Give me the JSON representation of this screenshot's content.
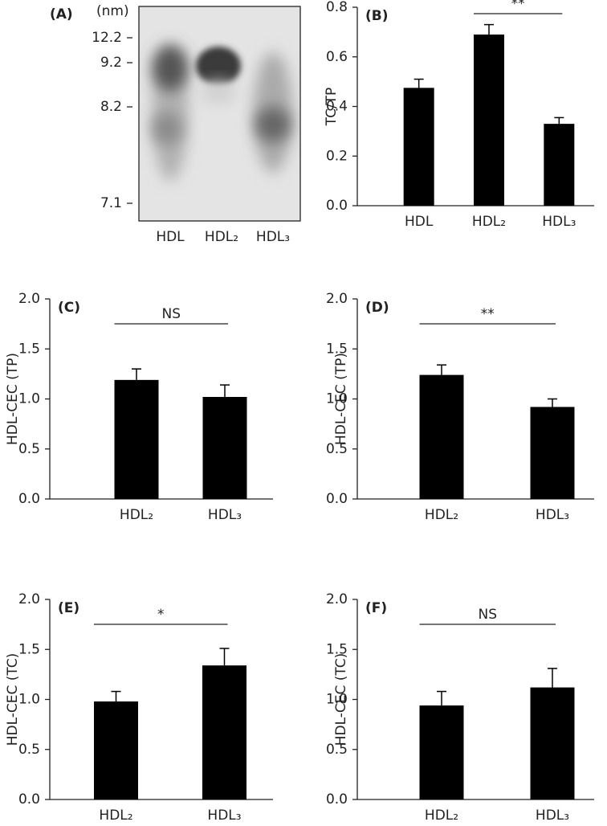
{
  "chart_data": [
    {
      "type": "gel",
      "title": "(A)",
      "unit": "(nm)",
      "markers": [
        12.2,
        9.2,
        8.2,
        7.1
      ],
      "lanes": [
        "HDL",
        "HDL₂",
        "HDL₃"
      ]
    },
    {
      "type": "bar",
      "title": "(B)",
      "y_label": "TC/TP",
      "categories": [
        "HDL",
        "HDL₂",
        "HDL₃"
      ],
      "values": [
        0.475,
        0.69,
        0.33
      ],
      "errors": [
        0.035,
        0.04,
        0.025
      ],
      "color": "#000000",
      "ylim": [
        0,
        0.8
      ],
      "yticks": [
        {
          "value": 0,
          "label": "0.0"
        },
        0.2,
        0.4,
        0.6,
        0.8
      ],
      "annotations": [
        {
          "text": "**",
          "between": [
            "HDL₂",
            "HDL₃"
          ]
        }
      ]
    },
    {
      "type": "bar",
      "title": "(C)",
      "y_label": "HDL-CEC (TP)",
      "categories": [
        "HDL₂",
        "HDL₃"
      ],
      "values": [
        1.19,
        1.02
      ],
      "errors": [
        0.11,
        0.12
      ],
      "color": "#000000",
      "ylim": [
        0,
        2
      ],
      "yticks": [
        {
          "value": 0,
          "label": "0.0"
        },
        0.5,
        {
          "value": 1,
          "label": "1.0"
        },
        1.5,
        {
          "value": 2,
          "label": "2.0"
        }
      ],
      "annotations": [
        {
          "text": "NS",
          "between": [
            "HDL₂",
            "HDL₃"
          ]
        }
      ]
    },
    {
      "type": "bar",
      "title": "(D)",
      "y_label": "HDL-CEC (TP)",
      "categories": [
        "HDL₂",
        "HDL₃"
      ],
      "values": [
        1.24,
        0.92
      ],
      "errors": [
        0.1,
        0.08
      ],
      "color": "#000000",
      "ylim": [
        0,
        2
      ],
      "yticks": [
        {
          "value": 0,
          "label": "0.0"
        },
        0.5,
        {
          "value": 1,
          "label": "1.0"
        },
        1.5,
        {
          "value": 2,
          "label": "2.0"
        }
      ],
      "annotations": [
        {
          "text": "**",
          "between": [
            "HDL₂",
            "HDL₃"
          ]
        }
      ]
    },
    {
      "type": "bar",
      "title": "(E)",
      "y_label": "HDL-CEC (TC)",
      "categories": [
        "HDL₂",
        "HDL₃"
      ],
      "values": [
        0.98,
        1.34
      ],
      "errors": [
        0.1,
        0.17
      ],
      "color": "#000000",
      "ylim": [
        0,
        2
      ],
      "yticks": [
        {
          "value": 0,
          "label": "0.0"
        },
        0.5,
        {
          "value": 1,
          "label": "1.0"
        },
        1.5,
        {
          "value": 2,
          "label": "2.0"
        }
      ],
      "annotations": [
        {
          "text": "*",
          "between": [
            "HDL₂",
            "HDL₃"
          ]
        }
      ]
    },
    {
      "type": "bar",
      "title": "(F)",
      "y_label": "HDL-CEC (TC)",
      "categories": [
        "HDL₂",
        "HDL₃"
      ],
      "values": [
        0.94,
        1.12
      ],
      "errors": [
        0.14,
        0.19
      ],
      "color": "#000000",
      "ylim": [
        0,
        2
      ],
      "yticks": [
        {
          "value": 0,
          "label": "0.0"
        },
        0.5,
        {
          "value": 1,
          "label": "1.0"
        },
        1.5,
        {
          "value": 2,
          "label": "2.0"
        }
      ],
      "annotations": [
        {
          "text": "NS",
          "between": [
            "HDL₂",
            "HDL₃"
          ]
        }
      ]
    }
  ]
}
